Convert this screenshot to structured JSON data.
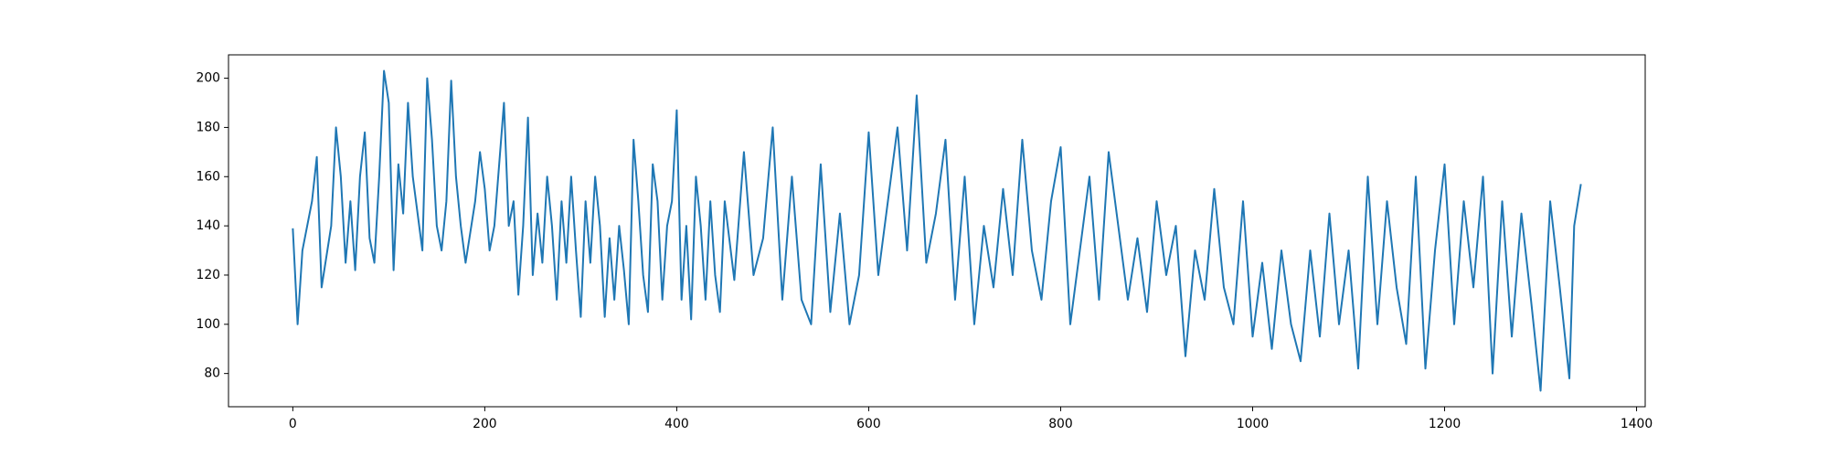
{
  "chart_data": {
    "type": "line",
    "color": "#1f77b4",
    "x": [
      0,
      5,
      10,
      20,
      25,
      30,
      40,
      45,
      50,
      55,
      60,
      65,
      70,
      75,
      80,
      85,
      90,
      95,
      100,
      105,
      110,
      115,
      120,
      125,
      130,
      135,
      140,
      145,
      150,
      155,
      160,
      165,
      170,
      175,
      180,
      190,
      195,
      200,
      205,
      210,
      215,
      220,
      225,
      230,
      235,
      240,
      245,
      250,
      255,
      260,
      265,
      270,
      275,
      280,
      285,
      290,
      295,
      300,
      305,
      310,
      315,
      320,
      325,
      330,
      335,
      340,
      345,
      350,
      355,
      360,
      365,
      370,
      375,
      380,
      385,
      390,
      395,
      400,
      405,
      410,
      415,
      420,
      425,
      430,
      435,
      440,
      445,
      450,
      460,
      470,
      480,
      490,
      500,
      510,
      520,
      530,
      540,
      550,
      560,
      570,
      580,
      590,
      600,
      610,
      620,
      630,
      640,
      650,
      660,
      670,
      680,
      690,
      700,
      710,
      720,
      730,
      740,
      750,
      760,
      770,
      780,
      790,
      800,
      810,
      820,
      830,
      840,
      850,
      860,
      870,
      880,
      890,
      900,
      910,
      920,
      930,
      940,
      950,
      960,
      970,
      980,
      990,
      1000,
      1010,
      1020,
      1030,
      1040,
      1050,
      1060,
      1070,
      1080,
      1090,
      1100,
      1110,
      1120,
      1130,
      1140,
      1150,
      1160,
      1170,
      1180,
      1190,
      1200,
      1210,
      1220,
      1230,
      1240,
      1250,
      1260,
      1270,
      1280,
      1290,
      1300,
      1310,
      1320,
      1330,
      1335,
      1342
    ],
    "values": [
      139,
      100,
      130,
      150,
      168,
      115,
      140,
      180,
      160,
      125,
      150,
      122,
      160,
      178,
      135,
      125,
      160,
      203,
      190,
      122,
      165,
      145,
      190,
      160,
      145,
      130,
      200,
      175,
      140,
      130,
      150,
      199,
      160,
      140,
      125,
      150,
      170,
      155,
      130,
      140,
      165,
      190,
      140,
      150,
      112,
      140,
      184,
      120,
      145,
      125,
      160,
      140,
      110,
      150,
      125,
      160,
      130,
      103,
      150,
      125,
      160,
      140,
      103,
      135,
      110,
      140,
      122,
      100,
      175,
      150,
      120,
      105,
      165,
      150,
      110,
      140,
      150,
      187,
      110,
      140,
      102,
      160,
      140,
      110,
      150,
      120,
      105,
      150,
      118,
      170,
      120,
      135,
      180,
      110,
      160,
      110,
      100,
      165,
      105,
      145,
      100,
      120,
      178,
      120,
      150,
      180,
      130,
      193,
      125,
      145,
      175,
      110,
      160,
      100,
      140,
      115,
      155,
      120,
      175,
      130,
      110,
      150,
      172,
      100,
      130,
      160,
      110,
      170,
      140,
      110,
      135,
      105,
      150,
      120,
      140,
      87,
      130,
      110,
      155,
      115,
      100,
      150,
      95,
      125,
      90,
      130,
      100,
      85,
      130,
      95,
      145,
      100,
      130,
      82,
      160,
      100,
      150,
      115,
      92,
      160,
      82,
      130,
      165,
      100,
      150,
      115,
      160,
      80,
      150,
      95,
      145,
      110,
      73,
      150,
      115,
      78,
      140,
      157
    ],
    "xlim": [
      -67,
      1409
    ],
    "ylim": [
      66.5,
      209.5
    ],
    "xticks": [
      0,
      200,
      400,
      600,
      800,
      1000,
      1200,
      1400
    ],
    "yticks": [
      80,
      100,
      120,
      140,
      160,
      180,
      200
    ]
  }
}
